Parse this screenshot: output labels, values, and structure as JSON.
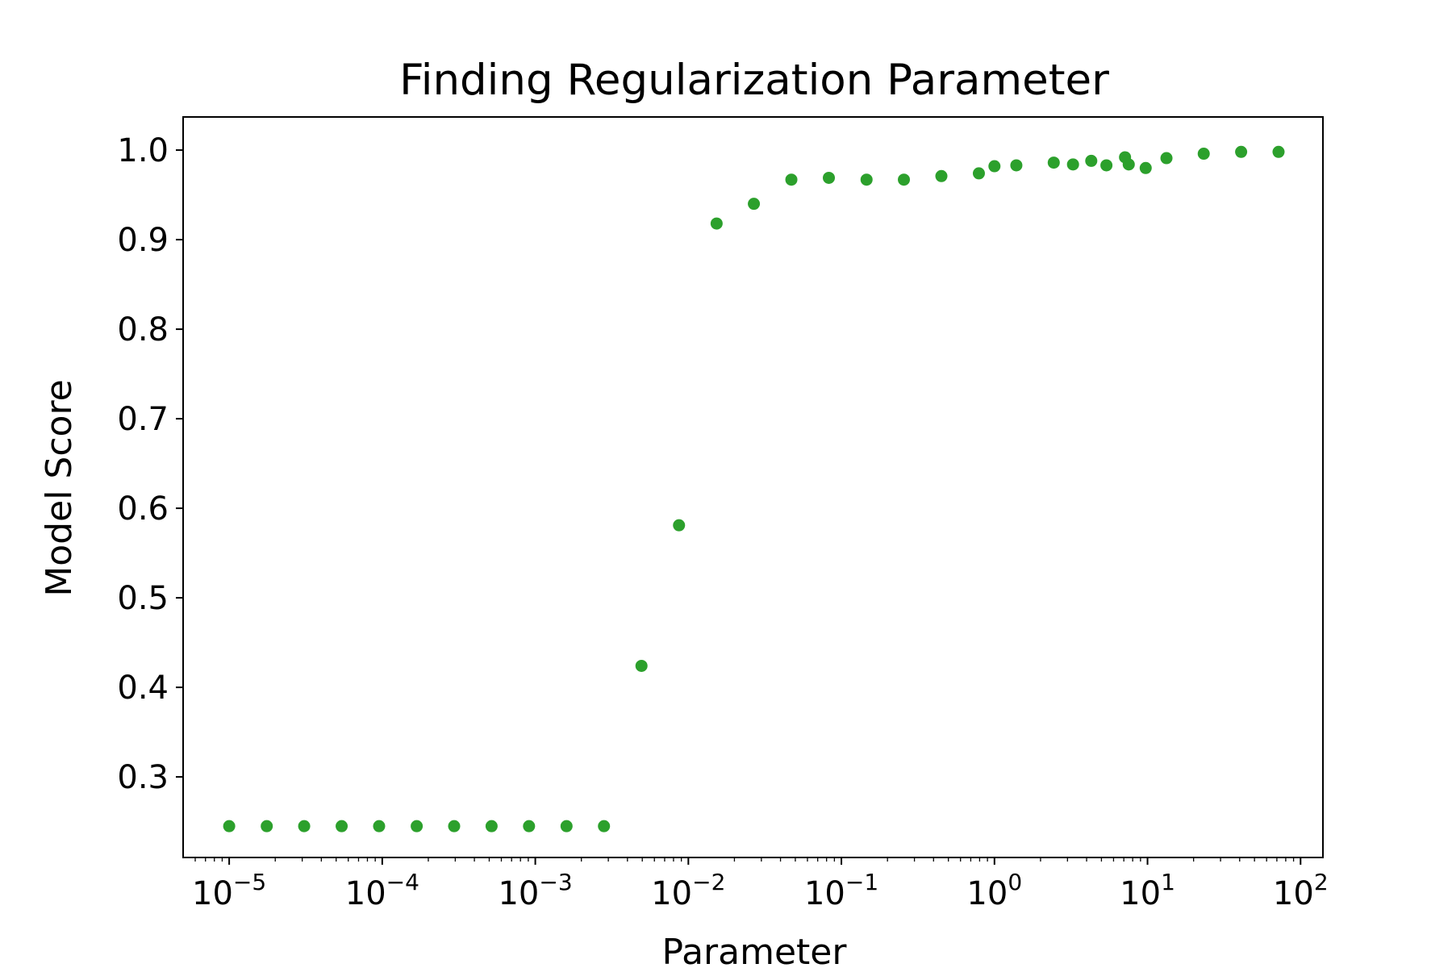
{
  "chart_data": {
    "type": "scatter",
    "title": "Finding Regularization Parameter",
    "xlabel": "Parameter",
    "ylabel": "Model Score",
    "xscale": "log",
    "xlim": [
      5e-06,
      140
    ],
    "ylim": [
      0.21,
      1.037
    ],
    "grid": false,
    "color": "#2ca02c",
    "x_ticks": [
      {
        "value": 1e-05,
        "base": "10",
        "exp": "−5"
      },
      {
        "value": 0.0001,
        "base": "10",
        "exp": "−4"
      },
      {
        "value": 0.001,
        "base": "10",
        "exp": "−3"
      },
      {
        "value": 0.01,
        "base": "10",
        "exp": "−2"
      },
      {
        "value": 0.1,
        "base": "10",
        "exp": "−1"
      },
      {
        "value": 1,
        "base": "10",
        "exp": "0"
      },
      {
        "value": 10,
        "base": "10",
        "exp": "1"
      },
      {
        "value": 100,
        "base": "10",
        "exp": "2"
      }
    ],
    "y_ticks": [
      {
        "value": 0.3,
        "label": "0.3"
      },
      {
        "value": 0.4,
        "label": "0.4"
      },
      {
        "value": 0.5,
        "label": "0.5"
      },
      {
        "value": 0.6,
        "label": "0.6"
      },
      {
        "value": 0.7,
        "label": "0.7"
      },
      {
        "value": 0.8,
        "label": "0.8"
      },
      {
        "value": 0.9,
        "label": "0.9"
      },
      {
        "value": 1.0,
        "label": "1.0"
      }
    ],
    "points": [
      {
        "x": 1e-05,
        "y": 0.245
      },
      {
        "x": 1.76e-05,
        "y": 0.245
      },
      {
        "x": 3.09e-05,
        "y": 0.245
      },
      {
        "x": 5.43e-05,
        "y": 0.245
      },
      {
        "x": 9.54e-05,
        "y": 0.245
      },
      {
        "x": 0.000168,
        "y": 0.245
      },
      {
        "x": 0.000295,
        "y": 0.245
      },
      {
        "x": 0.000518,
        "y": 0.245
      },
      {
        "x": 0.00091,
        "y": 0.245
      },
      {
        "x": 0.0016,
        "y": 0.245
      },
      {
        "x": 0.00281,
        "y": 0.245
      },
      {
        "x": 0.00494,
        "y": 0.424
      },
      {
        "x": 0.00869,
        "y": 0.581
      },
      {
        "x": 0.0153,
        "y": 0.918
      },
      {
        "x": 0.0268,
        "y": 0.94
      },
      {
        "x": 0.0471,
        "y": 0.967
      },
      {
        "x": 0.0828,
        "y": 0.969
      },
      {
        "x": 0.146,
        "y": 0.967
      },
      {
        "x": 0.256,
        "y": 0.967
      },
      {
        "x": 0.45,
        "y": 0.971
      },
      {
        "x": 0.791,
        "y": 0.974
      },
      {
        "x": 1.0,
        "y": 0.982
      },
      {
        "x": 1.39,
        "y": 0.983
      },
      {
        "x": 2.44,
        "y": 0.986
      },
      {
        "x": 3.26,
        "y": 0.984
      },
      {
        "x": 4.29,
        "y": 0.988
      },
      {
        "x": 5.39,
        "y": 0.983
      },
      {
        "x": 7.13,
        "y": 0.992
      },
      {
        "x": 7.54,
        "y": 0.984
      },
      {
        "x": 9.73,
        "y": 0.98
      },
      {
        "x": 13.3,
        "y": 0.991
      },
      {
        "x": 23.3,
        "y": 0.996
      },
      {
        "x": 40.9,
        "y": 0.998
      },
      {
        "x": 71.8,
        "y": 0.998
      }
    ]
  }
}
